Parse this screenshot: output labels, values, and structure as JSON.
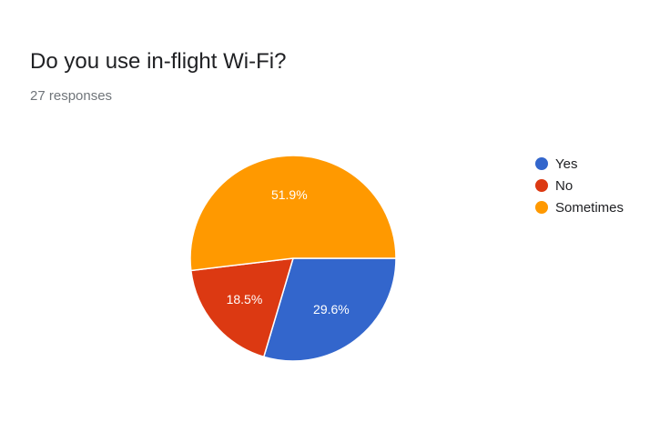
{
  "header": {
    "title": "Do you use in-flight Wi-Fi?",
    "subtitle": "27 responses"
  },
  "chart_data": {
    "type": "pie",
    "title": "Do you use in-flight Wi-Fi?",
    "categories": [
      "Yes",
      "No",
      "Sometimes"
    ],
    "values": [
      29.6,
      18.5,
      51.9
    ],
    "labels": [
      "29.6%",
      "18.5%",
      "51.9%"
    ],
    "colors": [
      "#3366cc",
      "#dc3912",
      "#ff9900"
    ],
    "legend_position": "right"
  }
}
